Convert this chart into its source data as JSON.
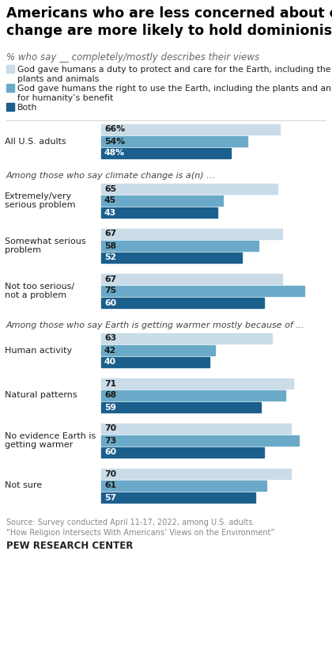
{
  "title": "Americans who are less concerned about climate\nchange are more likely to hold dominionist views",
  "subtitle": "% who say __ completely/mostly describes their views",
  "section_headers": [
    "Among those who say climate change is a(n) ...",
    "Among those who say Earth is getting warmer mostly because of ..."
  ],
  "groups": [
    {
      "label": "All U.S. adults",
      "values": [
        66,
        54,
        48
      ],
      "show_pct": true,
      "section": -1
    },
    {
      "label": "Extremely/very\nserious problem",
      "values": [
        65,
        45,
        43
      ],
      "show_pct": false,
      "section": 0
    },
    {
      "label": "Somewhat serious\nproblem",
      "values": [
        67,
        58,
        52
      ],
      "show_pct": false,
      "section": 0
    },
    {
      "label": "Not too serious/\nnot a problem",
      "values": [
        67,
        75,
        60
      ],
      "show_pct": false,
      "section": 0
    },
    {
      "label": "Human activity",
      "values": [
        63,
        42,
        40
      ],
      "show_pct": false,
      "section": 1
    },
    {
      "label": "Natural patterns",
      "values": [
        71,
        68,
        59
      ],
      "show_pct": false,
      "section": 1
    },
    {
      "label": "No evidence Earth is\ngetting warmer",
      "values": [
        70,
        73,
        60
      ],
      "show_pct": false,
      "section": 1
    },
    {
      "label": "Not sure",
      "values": [
        70,
        61,
        57
      ],
      "show_pct": false,
      "section": 1
    }
  ],
  "colors": [
    "#c9dce8",
    "#6aaac8",
    "#1b5f8c"
  ],
  "max_val": 80,
  "source": "Source: Survey conducted April 11-17, 2022, among U.S. adults.\n“How Religion Intersects With Americans’ Views on the Environment”",
  "branding": "PEW RESEARCH CENTER",
  "bg_color": "#ffffff",
  "text_color": "#222222",
  "section_color": "#444444",
  "title_color": "#000000",
  "subtitle_color": "#666666"
}
